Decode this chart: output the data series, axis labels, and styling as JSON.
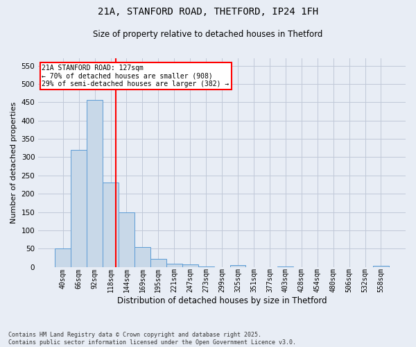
{
  "title_line1": "21A, STANFORD ROAD, THETFORD, IP24 1FH",
  "title_line2": "Size of property relative to detached houses in Thetford",
  "xlabel": "Distribution of detached houses by size in Thetford",
  "ylabel": "Number of detached properties",
  "footnote": "Contains HM Land Registry data © Crown copyright and database right 2025.\nContains public sector information licensed under the Open Government Licence v3.0.",
  "bar_labels": [
    "40sqm",
    "66sqm",
    "92sqm",
    "118sqm",
    "144sqm",
    "169sqm",
    "195sqm",
    "221sqm",
    "247sqm",
    "273sqm",
    "299sqm",
    "325sqm",
    "351sqm",
    "377sqm",
    "403sqm",
    "428sqm",
    "454sqm",
    "480sqm",
    "506sqm",
    "532sqm",
    "558sqm"
  ],
  "bar_values": [
    50,
    320,
    457,
    230,
    150,
    55,
    22,
    10,
    8,
    2,
    0,
    6,
    0,
    0,
    2,
    0,
    0,
    0,
    0,
    0,
    3
  ],
  "bar_color": "#c8d8e8",
  "bar_edge_color": "#5b9bd5",
  "grid_color": "#c0c8d8",
  "background_color": "#e8edf5",
  "annotation_text": "21A STANFORD ROAD: 127sqm\n← 70% of detached houses are smaller (908)\n29% of semi-detached houses are larger (382) →",
  "annotation_box_color": "white",
  "annotation_box_edge_color": "red",
  "ylim": [
    0,
    570
  ],
  "yticks": [
    0,
    50,
    100,
    150,
    200,
    250,
    300,
    350,
    400,
    450,
    500,
    550
  ],
  "title_fontsize": 10,
  "subtitle_fontsize": 8.5,
  "ylabel_fontsize": 8,
  "xlabel_fontsize": 8.5,
  "footnote_fontsize": 6,
  "annotation_fontsize": 7,
  "tick_fontsize": 7,
  "ytick_fontsize": 7.5
}
